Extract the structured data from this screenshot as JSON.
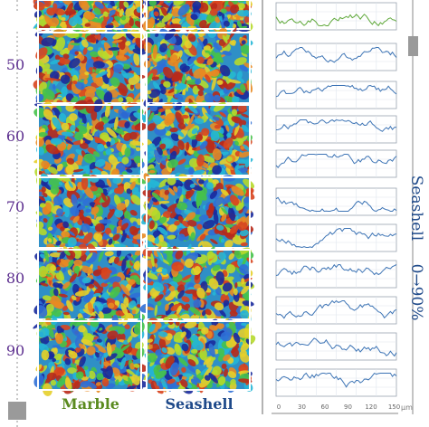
{
  "row_labels": [
    "50",
    "60",
    "70",
    "80",
    "90"
  ],
  "column_labels": {
    "left": "Marble",
    "right": "Seashell"
  },
  "side_labels": {
    "material": "Seashell",
    "range": "0→90%"
  },
  "x_ticks": [
    "0",
    "30",
    "60",
    "90",
    "120",
    "150"
  ],
  "x_unit": "µm",
  "colors": {
    "row_label": "#5b2d8e",
    "marble_label": "#5a8a1e",
    "seashell_label": "#1f4a8a",
    "top_profile": "#5fa83a",
    "profile_line": "#3d74b5",
    "slider": "#999999"
  },
  "icons": [
    "slider-top-handle-icon",
    "slider-bottom-handle-icon"
  ]
}
